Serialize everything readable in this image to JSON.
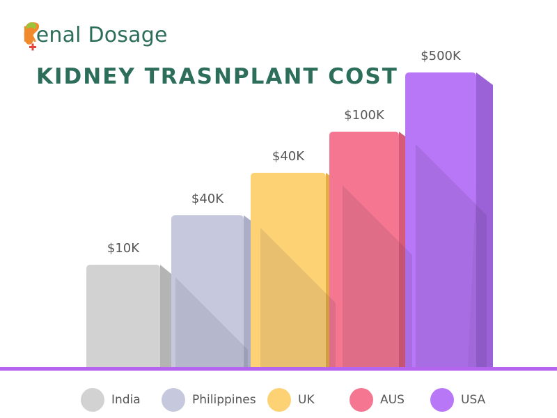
{
  "brand": {
    "logo_icon": "kidney-plus-logo-icon",
    "name_part1": "R",
    "name_part2": "enal",
    "name_part3": " Dosage",
    "colors": {
      "green": "#2d6e5b",
      "orange": "#f08a2c",
      "red": "#e2463d",
      "lime": "#9bc43c"
    }
  },
  "chart_data": {
    "type": "bar",
    "title": "KIDNEY TRASNPLANT COST",
    "categories": [
      "India",
      "Philippines",
      "UK",
      "AUS",
      "USA"
    ],
    "values": [
      10,
      40,
      40,
      100,
      500
    ],
    "value_labels": [
      "$10K",
      "$40K",
      "$40K",
      "$100K",
      "$500K"
    ],
    "ylabel": "",
    "xlabel": "",
    "legend_position": "bottom",
    "grid": false,
    "colors": [
      "#d2d2d2",
      "#c6c9dd",
      "#fdd274",
      "#f47690",
      "#b877f6"
    ],
    "side_colors": [
      "#b4b4b4",
      "#aaaec6",
      "#e5ad45",
      "#d65b78",
      "#9a62d6"
    ],
    "baseline_color": "#b565f0"
  }
}
